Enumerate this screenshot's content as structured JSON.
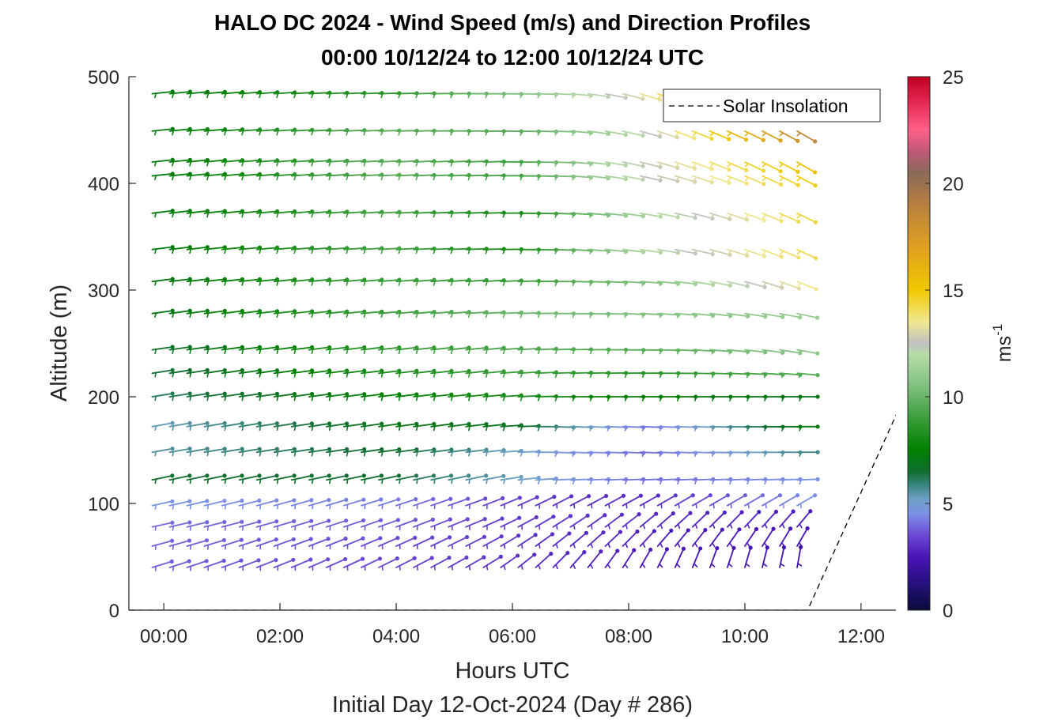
{
  "chart_data": {
    "type": "wind-barb-profile",
    "title": "HALO DC 2024 - Wind Speed (m/s) and Direction Profiles",
    "subtitle": "00:00 10/12/24 to 12:00 10/12/24  UTC",
    "xlabel": "Hours UTC",
    "xlabel2": "Initial Day 12-Oct-2024 (Day # 286)",
    "ylabel": "Altitude (m)",
    "xlim": [
      -0.6,
      12.6
    ],
    "ylim": [
      0,
      500
    ],
    "xticks": [
      {
        "value": 0,
        "label": "00:00"
      },
      {
        "value": 2,
        "label": "02:00"
      },
      {
        "value": 4,
        "label": "04:00"
      },
      {
        "value": 6,
        "label": "06:00"
      },
      {
        "value": 8,
        "label": "08:00"
      },
      {
        "value": 10,
        "label": "10:00"
      },
      {
        "value": 12,
        "label": "12:00"
      }
    ],
    "yticks": [
      {
        "value": 0,
        "label": "0"
      },
      {
        "value": 100,
        "label": "100"
      },
      {
        "value": 200,
        "label": "200"
      },
      {
        "value": 300,
        "label": "300"
      },
      {
        "value": 400,
        "label": "400"
      },
      {
        "value": 500,
        "label": "500"
      }
    ],
    "colorbar": {
      "label": "ms",
      "label_sup": "-1",
      "range": [
        0,
        25
      ],
      "ticks": [
        {
          "value": 0,
          "label": "0"
        },
        {
          "value": 5,
          "label": "5"
        },
        {
          "value": 10,
          "label": "10"
        },
        {
          "value": 15,
          "label": "15"
        },
        {
          "value": 20,
          "label": "20"
        },
        {
          "value": 25,
          "label": "25"
        }
      ],
      "stops": [
        {
          "v": 0,
          "c": "#0a0a3a"
        },
        {
          "v": 1.2,
          "c": "#24107a"
        },
        {
          "v": 2.5,
          "c": "#4a14b8"
        },
        {
          "v": 3.5,
          "c": "#6b49d4"
        },
        {
          "v": 4.5,
          "c": "#7c8fe6"
        },
        {
          "v": 5.2,
          "c": "#6fa0c8"
        },
        {
          "v": 5.8,
          "c": "#3e8888"
        },
        {
          "v": 6.5,
          "c": "#0e6e2e"
        },
        {
          "v": 7.5,
          "c": "#008000"
        },
        {
          "v": 9.0,
          "c": "#3a9e3a"
        },
        {
          "v": 10.5,
          "c": "#80c080"
        },
        {
          "v": 12.0,
          "c": "#b8dca8"
        },
        {
          "v": 12.5,
          "c": "#c0c0c0"
        },
        {
          "v": 13.5,
          "c": "#f0e890"
        },
        {
          "v": 15.0,
          "c": "#f0c800"
        },
        {
          "v": 17.0,
          "c": "#e0a020"
        },
        {
          "v": 19.0,
          "c": "#b88040"
        },
        {
          "v": 20.5,
          "c": "#8a6a58"
        },
        {
          "v": 21.5,
          "c": "#c05878"
        },
        {
          "v": 22.5,
          "c": "#ff6088"
        },
        {
          "v": 24.0,
          "c": "#e0204a"
        },
        {
          "v": 25.0,
          "c": "#c00020"
        }
      ]
    },
    "series": [
      {
        "name": "Solar Insolation",
        "style": "dashed",
        "color": "#000000",
        "x": [
          -0.6,
          11.08,
          12.62
        ],
        "y": [
          0,
          0,
          185
        ]
      }
    ],
    "legend": {
      "placement": "top-right",
      "entries": [
        "Solar Insolation"
      ]
    },
    "barbs": {
      "time_start": -0.2,
      "time_step": 0.3,
      "time_count": 38,
      "altitudes": [
        40,
        60,
        78,
        98,
        122,
        148,
        172,
        200,
        222,
        244,
        278,
        308,
        338,
        372,
        407,
        420,
        449,
        484
      ],
      "speed_at_time_fraction": [
        0.0,
        0.35,
        0.55,
        0.75,
        1.0
      ],
      "speed": [
        [
          3.8,
          3.4,
          3.0,
          2.6,
          2.2
        ],
        [
          3.9,
          3.5,
          3.1,
          2.7,
          2.4
        ],
        [
          4.0,
          3.7,
          3.2,
          2.9,
          2.6
        ],
        [
          4.6,
          4.2,
          3.2,
          2.9,
          4.5
        ],
        [
          6.5,
          6.5,
          5.2,
          4.0,
          4.6
        ],
        [
          5.6,
          6.6,
          5.2,
          4.0,
          5.8
        ],
        [
          5.4,
          7.0,
          6.8,
          4.0,
          7.2
        ],
        [
          6.2,
          7.5,
          8.2,
          7.5,
          7.0
        ],
        [
          6.4,
          8.2,
          9.0,
          8.5,
          9.6
        ],
        [
          6.6,
          8.6,
          9.4,
          9.6,
          10.8
        ],
        [
          7.0,
          9.0,
          10.0,
          10.6,
          11.2
        ],
        [
          7.0,
          9.0,
          8.8,
          10.5,
          13.5
        ],
        [
          7.2,
          9.2,
          8.0,
          11.8,
          14.2
        ],
        [
          7.2,
          9.2,
          8.0,
          11.6,
          14.4
        ],
        [
          7.2,
          9.6,
          9.0,
          12.4,
          14.8
        ],
        [
          7.2,
          9.6,
          9.0,
          12.6,
          15.4
        ],
        [
          7.2,
          9.6,
          9.5,
          12.2,
          18.5
        ],
        [
          7.2,
          8.6,
          10.4,
          13.2,
          18.8
        ]
      ],
      "direction_deg_at_time_fraction": [
        0.0,
        0.5,
        0.62,
        0.8,
        1.0
      ],
      "direction_deg": [
        [
          253,
          240,
          225,
          205,
          190
        ],
        [
          255,
          243,
          232,
          220,
          210
        ],
        [
          258,
          247,
          238,
          228,
          220
        ],
        [
          258,
          250,
          243,
          240,
          240
        ],
        [
          258,
          258,
          268,
          268,
          268
        ],
        [
          260,
          263,
          272,
          272,
          270
        ],
        [
          260,
          263,
          272,
          272,
          270
        ],
        [
          261,
          264,
          270,
          270,
          270
        ],
        [
          261,
          264,
          268,
          270,
          275
        ],
        [
          262,
          264,
          268,
          272,
          280
        ],
        [
          262,
          266,
          270,
          274,
          282
        ],
        [
          263,
          266,
          270,
          276,
          292
        ],
        [
          263,
          268,
          272,
          280,
          295
        ],
        [
          263,
          268,
          272,
          282,
          296
        ],
        [
          264,
          268,
          272,
          286,
          298
        ],
        [
          264,
          268,
          272,
          288,
          300
        ],
        [
          264,
          270,
          272,
          290,
          300
        ],
        [
          264,
          270,
          272,
          292,
          302
        ]
      ]
    }
  }
}
